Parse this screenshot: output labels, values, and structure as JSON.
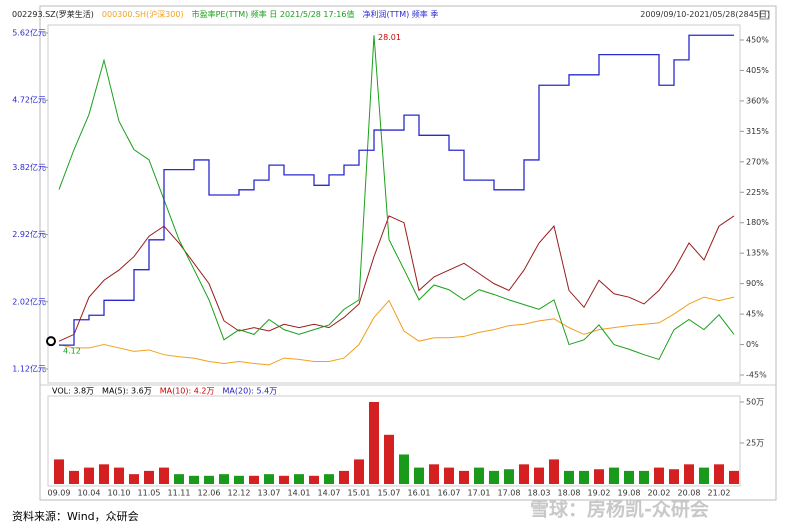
{
  "range_text": "2009/09/10-2021/05/28(2845日)",
  "source": "资料来源：Wind，众研会",
  "watermark": "雪球：房杨凯-众研会",
  "chart_data": [
    {
      "type": "line",
      "max_label": "28.01",
      "min_label": "4.12",
      "ylim": [
        -45,
        450
      ],
      "yticks": [
        {
          "value": -45,
          "label": "-45%"
        },
        {
          "value": 0,
          "label": "0%"
        },
        {
          "value": 45,
          "label": "45%"
        },
        {
          "value": 90,
          "label": "90%"
        },
        {
          "value": 135,
          "label": "135%"
        },
        {
          "value": 180,
          "label": "180%"
        },
        {
          "value": 225,
          "label": "225%"
        },
        {
          "value": 270,
          "label": "270%"
        },
        {
          "value": 315,
          "label": "315%"
        },
        {
          "value": 360,
          "label": "360%"
        },
        {
          "value": 405,
          "label": "405%"
        },
        {
          "value": 450,
          "label": "450%"
        }
      ],
      "y2lim": [
        1.12,
        5.62
      ],
      "y2ticks": [
        {
          "value": 1.12,
          "label": "1.12亿元"
        },
        {
          "value": 2.02,
          "label": "2.02亿元"
        },
        {
          "value": 2.92,
          "label": "2.92亿元"
        },
        {
          "value": 3.82,
          "label": "3.82亿元"
        },
        {
          "value": 4.72,
          "label": "4.72亿元"
        },
        {
          "value": 5.62,
          "label": "5.62亿元"
        }
      ],
      "series": [
        {
          "name": "002293.SZ(罗莱生活)",
          "color": "#9b1c1c",
          "values": [
            5,
            15,
            70,
            95,
            110,
            130,
            160,
            175,
            150,
            120,
            90,
            35,
            20,
            25,
            20,
            30,
            25,
            30,
            25,
            40,
            60,
            130,
            190,
            180,
            80,
            100,
            110,
            120,
            105,
            90,
            80,
            110,
            150,
            175,
            80,
            55,
            95,
            75,
            70,
            60,
            80,
            110,
            150,
            125,
            175,
            190
          ]
        },
        {
          "name": "000300.SH(沪深300)",
          "color": "#f0a020",
          "values": [
            0,
            -5,
            -5,
            0,
            -5,
            -10,
            -8,
            -15,
            -18,
            -20,
            -25,
            -28,
            -25,
            -28,
            -30,
            -20,
            -22,
            -25,
            -25,
            -20,
            0,
            40,
            65,
            20,
            5,
            10,
            10,
            12,
            18,
            22,
            28,
            30,
            35,
            38,
            25,
            15,
            22,
            25,
            28,
            30,
            32,
            45,
            60,
            70,
            65,
            70
          ]
        },
        {
          "name": "市盈率PE(TTM) 频率 日 2021/5/28 17:16值",
          "color": "#1aa01a",
          "values": [
            229,
            288,
            340,
            420,
            330,
            288,
            273,
            214,
            155,
            111,
            66,
            7,
            22,
            15,
            37,
            22,
            15,
            22,
            29,
            52,
            66,
            457,
            155,
            111,
            66,
            88,
            81,
            66,
            81,
            74,
            66,
            59,
            52,
            66,
            0,
            7,
            29,
            0,
            -7,
            -15,
            -22,
            22,
            37,
            22,
            44,
            15
          ]
        },
        {
          "name": "净利润(TTM) 频率 季",
          "color": "#2a2ad0",
          "axis": "y2",
          "step": true,
          "values": [
            1.44,
            1.78,
            1.84,
            2.04,
            2.04,
            2.45,
            2.85,
            3.79,
            3.79,
            3.92,
            3.45,
            3.45,
            3.52,
            3.65,
            3.85,
            3.72,
            3.72,
            3.58,
            3.72,
            3.85,
            4.05,
            4.32,
            4.32,
            4.52,
            4.25,
            4.25,
            4.05,
            3.65,
            3.65,
            3.52,
            3.52,
            3.92,
            4.92,
            4.92,
            5.06,
            5.06,
            5.33,
            5.33,
            5.33,
            5.33,
            4.92,
            5.26,
            5.59,
            5.59,
            5.59,
            5.59
          ]
        }
      ]
    },
    {
      "type": "bar",
      "title_parts": [
        {
          "text": "VOL: 3.8万",
          "color": "#000000"
        },
        {
          "text": "MA(5): 3.6万",
          "color": "#000000"
        },
        {
          "text": "MA(10): 4.2万",
          "color": "#d00000"
        },
        {
          "text": "MA(20): 5.4万",
          "color": "#2020c0"
        }
      ],
      "up_color": "#d42020",
      "down_color": "#1a9a1a",
      "categories": [
        "09.09",
        null,
        "10.04",
        null,
        "10.10",
        null,
        "11.05",
        null,
        "11.11",
        null,
        "12.06",
        null,
        "12.12",
        null,
        "13.07",
        null,
        "14.01",
        null,
        "14.07",
        null,
        "15.01",
        null,
        "15.07",
        null,
        "16.01",
        null,
        "16.07",
        null,
        "17.01",
        null,
        "17.08",
        null,
        "18.03",
        null,
        "18.08",
        null,
        "19.02",
        null,
        "19.08",
        null,
        "20.02",
        null,
        "20.08",
        null,
        "21.02",
        null
      ],
      "values": [
        15,
        8,
        10,
        12,
        10,
        6,
        8,
        10,
        6,
        5,
        5,
        6,
        5,
        5,
        6,
        5,
        6,
        5,
        6,
        8,
        15,
        50,
        30,
        18,
        10,
        12,
        10,
        8,
        10,
        8,
        9,
        12,
        10,
        15,
        8,
        8,
        9,
        10,
        8,
        8,
        10,
        9,
        12,
        10,
        12,
        8
      ],
      "ylim": [
        0,
        50
      ],
      "yticks": [
        {
          "value": 25,
          "label": "25万"
        },
        {
          "value": 50,
          "label": "50万"
        }
      ]
    }
  ]
}
